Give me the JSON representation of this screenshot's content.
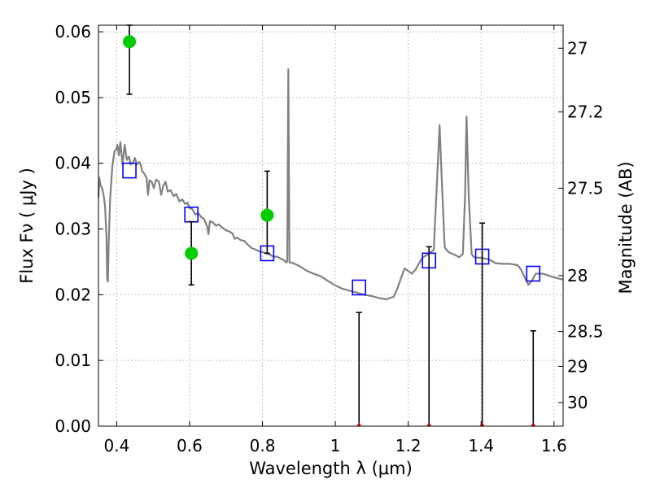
{
  "chart_data": {
    "type": "scatter",
    "title": "",
    "xlabel": "Wavelength  λ (μm)",
    "ylabel": "Flux  Fν  ( μJy )",
    "ylabel_right": "Magnitude (AB)",
    "xlim": [
      0.35,
      1.625
    ],
    "ylim": [
      0.0,
      0.061
    ],
    "grid": true,
    "x_ticks": [
      0.4,
      0.6,
      0.8,
      1.0,
      1.2,
      1.4,
      1.6
    ],
    "x_tick_labels": [
      "0.4",
      "0.6",
      "0.8",
      "1",
      "1.2",
      "1.4",
      "1.6"
    ],
    "y_ticks": [
      0.0,
      0.01,
      0.02,
      0.03,
      0.04,
      0.05,
      0.06
    ],
    "y_tick_labels": [
      "0.00",
      "0.01",
      "0.02",
      "0.03",
      "0.04",
      "0.05",
      "0.06"
    ],
    "right_ticks": [
      {
        "label": "27",
        "flux": 0.0575
      },
      {
        "label": "27.2",
        "flux": 0.0478
      },
      {
        "label": "27.5",
        "flux": 0.0362
      },
      {
        "label": "28",
        "flux": 0.0229
      },
      {
        "label": "28.5",
        "flux": 0.0144
      },
      {
        "label": "29",
        "flux": 0.0091
      },
      {
        "label": "30",
        "flux": 0.0036
      }
    ],
    "series": [
      {
        "type": "line",
        "color": "#808080",
        "points": [
          [
            0.35,
            0.0348
          ],
          [
            0.352,
            0.0378
          ],
          [
            0.356,
            0.0366
          ],
          [
            0.36,
            0.0362
          ],
          [
            0.364,
            0.0352
          ],
          [
            0.368,
            0.0335
          ],
          [
            0.372,
            0.0285
          ],
          [
            0.374,
            0.0225
          ],
          [
            0.376,
            0.022
          ],
          [
            0.378,
            0.0275
          ],
          [
            0.382,
            0.0345
          ],
          [
            0.388,
            0.0395
          ],
          [
            0.394,
            0.0418
          ],
          [
            0.398,
            0.042
          ],
          [
            0.402,
            0.0428
          ],
          [
            0.406,
            0.0412
          ],
          [
            0.41,
            0.0432
          ],
          [
            0.416,
            0.0398
          ],
          [
            0.422,
            0.0428
          ],
          [
            0.428,
            0.0405
          ],
          [
            0.434,
            0.041
          ],
          [
            0.438,
            0.0398
          ],
          [
            0.444,
            0.04
          ],
          [
            0.45,
            0.0408
          ],
          [
            0.456,
            0.0398
          ],
          [
            0.462,
            0.0402
          ],
          [
            0.466,
            0.0398
          ],
          [
            0.47,
            0.0388
          ],
          [
            0.476,
            0.0384
          ],
          [
            0.482,
            0.0378
          ],
          [
            0.486,
            0.0352
          ],
          [
            0.49,
            0.0374
          ],
          [
            0.496,
            0.0372
          ],
          [
            0.502,
            0.0362
          ],
          [
            0.508,
            0.0375
          ],
          [
            0.516,
            0.0372
          ],
          [
            0.522,
            0.0352
          ],
          [
            0.528,
            0.0366
          ],
          [
            0.534,
            0.0372
          ],
          [
            0.54,
            0.0357
          ],
          [
            0.548,
            0.0359
          ],
          [
            0.556,
            0.035
          ],
          [
            0.564,
            0.0353
          ],
          [
            0.572,
            0.0342
          ],
          [
            0.58,
            0.0345
          ],
          [
            0.588,
            0.0338
          ],
          [
            0.594,
            0.034
          ],
          [
            0.6,
            0.0332
          ],
          [
            0.608,
            0.033
          ],
          [
            0.616,
            0.0322
          ],
          [
            0.624,
            0.0324
          ],
          [
            0.632,
            0.0318
          ],
          [
            0.64,
            0.0315
          ],
          [
            0.648,
            0.0304
          ],
          [
            0.652,
            0.0292
          ],
          [
            0.656,
            0.0312
          ],
          [
            0.664,
            0.031
          ],
          [
            0.672,
            0.0305
          ],
          [
            0.68,
            0.0307
          ],
          [
            0.69,
            0.0302
          ],
          [
            0.7,
            0.0298
          ],
          [
            0.71,
            0.0296
          ],
          [
            0.718,
            0.0293
          ],
          [
            0.724,
            0.0285
          ],
          [
            0.73,
            0.0287
          ],
          [
            0.74,
            0.0283
          ],
          [
            0.75,
            0.0282
          ],
          [
            0.76,
            0.0276
          ],
          [
            0.77,
            0.0271
          ],
          [
            0.78,
            0.0269
          ],
          [
            0.79,
            0.0266
          ],
          [
            0.8,
            0.0265
          ],
          [
            0.81,
            0.0263
          ],
          [
            0.82,
            0.0261
          ],
          [
            0.83,
            0.0258
          ],
          [
            0.84,
            0.0258
          ],
          [
            0.85,
            0.0255
          ],
          [
            0.86,
            0.0252
          ],
          [
            0.866,
            0.0249
          ],
          [
            0.868,
            0.0252
          ],
          [
            0.871,
            0.0543
          ],
          [
            0.874,
            0.0249
          ],
          [
            0.88,
            0.0249
          ],
          [
            0.9,
            0.0244
          ],
          [
            0.92,
            0.0237
          ],
          [
            0.94,
            0.0232
          ],
          [
            0.96,
            0.0228
          ],
          [
            0.98,
            0.0221
          ],
          [
            1.0,
            0.0214
          ],
          [
            1.02,
            0.0209
          ],
          [
            1.04,
            0.0206
          ],
          [
            1.06,
            0.0203
          ],
          [
            1.08,
            0.02
          ],
          [
            1.1,
            0.0198
          ],
          [
            1.12,
            0.0195
          ],
          [
            1.14,
            0.0193
          ],
          [
            1.16,
            0.0197
          ],
          [
            1.17,
            0.0209
          ],
          [
            1.18,
            0.0225
          ],
          [
            1.19,
            0.024
          ],
          [
            1.2,
            0.0236
          ],
          [
            1.21,
            0.0232
          ],
          [
            1.22,
            0.0238
          ],
          [
            1.23,
            0.0248
          ],
          [
            1.24,
            0.0257
          ],
          [
            1.25,
            0.026
          ],
          [
            1.26,
            0.0264
          ],
          [
            1.27,
            0.0268
          ],
          [
            1.28,
            0.0385
          ],
          [
            1.286,
            0.0458
          ],
          [
            1.292,
            0.0375
          ],
          [
            1.3,
            0.0272
          ],
          [
            1.31,
            0.0265
          ],
          [
            1.33,
            0.026
          ],
          [
            1.34,
            0.0257
          ],
          [
            1.35,
            0.0262
          ],
          [
            1.356,
            0.035
          ],
          [
            1.36,
            0.0471
          ],
          [
            1.366,
            0.035
          ],
          [
            1.374,
            0.0262
          ],
          [
            1.38,
            0.0257
          ],
          [
            1.4,
            0.0256
          ],
          [
            1.42,
            0.0254
          ],
          [
            1.44,
            0.0248
          ],
          [
            1.46,
            0.0247
          ],
          [
            1.48,
            0.0247
          ],
          [
            1.5,
            0.0245
          ],
          [
            1.51,
            0.0238
          ],
          [
            1.52,
            0.0226
          ],
          [
            1.53,
            0.0215
          ],
          [
            1.54,
            0.0222
          ],
          [
            1.55,
            0.0232
          ],
          [
            1.57,
            0.0232
          ],
          [
            1.59,
            0.0228
          ],
          [
            1.61,
            0.0225
          ],
          [
            1.625,
            0.0223
          ]
        ]
      },
      {
        "type": "scatter",
        "marker": "open-square",
        "color": "#0000ff",
        "x": [
          0.435,
          0.605,
          0.813,
          1.065,
          1.257,
          1.403,
          1.543
        ],
        "y": [
          0.0389,
          0.0322,
          0.0263,
          0.0211,
          0.0252,
          0.0258,
          0.0232
        ]
      },
      {
        "type": "scatter",
        "marker": "filled-circle",
        "color": "#00cc00",
        "x": [
          0.435,
          0.605,
          0.813
        ],
        "y": [
          0.0585,
          0.0263,
          0.0321
        ],
        "yerr_low": [
          0.0505,
          0.0215,
          0.0263
        ],
        "yerr_high": [
          0.061,
          0.0311,
          0.0388
        ]
      },
      {
        "type": "scatter",
        "marker": "upper-limit",
        "color": "#cc0000",
        "x": [
          1.065,
          1.257,
          1.403,
          1.543
        ],
        "y": [
          0.0,
          0.0,
          0.0,
          0.0
        ],
        "yerr_high": [
          0.0173,
          0.0273,
          0.0309,
          0.0145
        ]
      }
    ]
  }
}
